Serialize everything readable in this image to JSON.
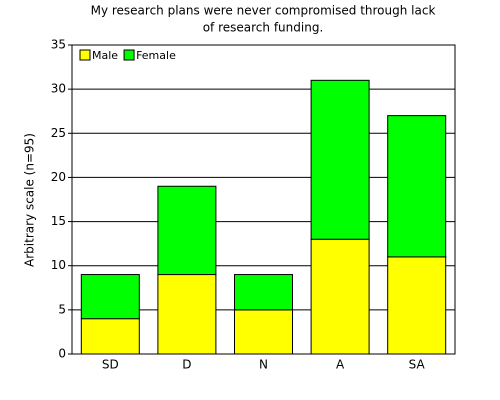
{
  "chart_data": {
    "type": "stacked_bar",
    "title": [
      "My research plans were never compromised through lack",
      "of research funding."
    ],
    "y_label": "Arbitrary scale (n=95)",
    "categories": [
      "SD",
      "D",
      "N",
      "A",
      "SA"
    ],
    "series": [
      {
        "name": "Male",
        "color": "#ffff00",
        "values": [
          4,
          9,
          5,
          13,
          11
        ]
      },
      {
        "name": "Female",
        "color": "#00ff00",
        "values": [
          5,
          10,
          4,
          18,
          16
        ]
      }
    ],
    "ylim": [
      0,
      35
    ],
    "yticks": [
      0,
      5,
      10,
      15,
      20,
      25,
      30,
      35
    ],
    "grid": true,
    "legend": "top-left"
  }
}
